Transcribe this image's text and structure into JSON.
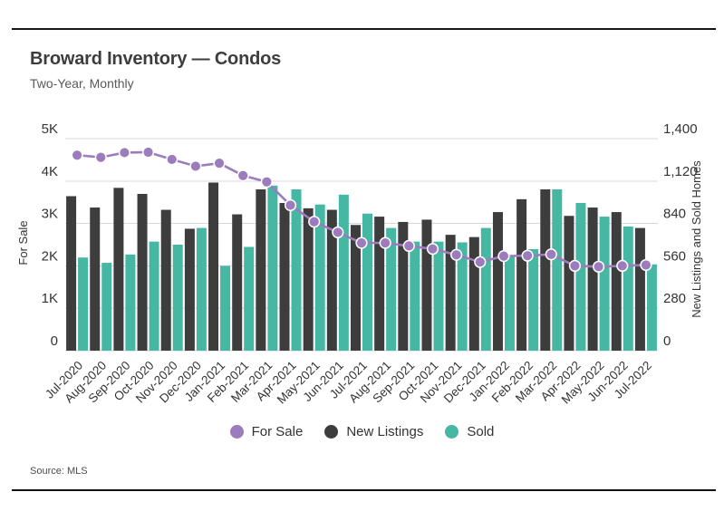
{
  "header": {
    "title": "Broward Inventory — Condos",
    "subtitle": "Two-Year, Monthly"
  },
  "legend": {
    "items": [
      {
        "label": "For Sale",
        "color": "#9d7cbe"
      },
      {
        "label": "New Listings",
        "color": "#3d3d3d"
      },
      {
        "label": "Sold",
        "color": "#45b7a2"
      }
    ]
  },
  "footer": {
    "source": "Source: MLS"
  },
  "colors": {
    "background": "#ffffff",
    "rule": "#141414",
    "grid": "#d8d8d8",
    "axis_text": "#333333",
    "title_text": "#3d3d3d",
    "subtitle_text": "#595959",
    "for_sale_line": "#9d7cbe",
    "new_listings_bar": "#3d3d3d",
    "sold_bar": "#45b7a2"
  },
  "chart_data": {
    "type": "bar",
    "subtype": "grouped-bars-with-line-overlay-dual-y-axis",
    "title": "Broward Inventory — Condos",
    "subtitle": "Two-Year, Monthly",
    "grid": true,
    "legend_position": "bottom",
    "categories": [
      "Jul-2020",
      "Aug-2020",
      "Sep-2020",
      "Oct-2020",
      "Nov-2020",
      "Dec-2020",
      "Jan-2021",
      "Feb-2021",
      "Mar-2021",
      "Apr-2021",
      "May-2021",
      "Jun-2021",
      "Jul-2021",
      "Aug-2021",
      "Sep-2021",
      "Oct-2021",
      "Nov-2021",
      "Dec-2021",
      "Jan-2022",
      "Feb-2022",
      "Mar-2022",
      "Apr-2022",
      "May-2022",
      "Jun-2022",
      "Jul-2022"
    ],
    "series": [
      {
        "name": "For Sale",
        "render": "line",
        "axis": "left",
        "color": "#9d7cbe",
        "values": [
          4610,
          4560,
          4670,
          4680,
          4510,
          4350,
          4420,
          4130,
          3980,
          3430,
          3040,
          2790,
          2540,
          2540,
          2470,
          2400,
          2260,
          2090,
          2230,
          2240,
          2270,
          2000,
          1980,
          2000,
          2020
        ]
      },
      {
        "name": "New Listings",
        "render": "bar",
        "axis": "right",
        "color": "#3d3d3d",
        "values": [
          1020,
          945,
          1075,
          1035,
          930,
          805,
          1110,
          900,
          1065,
          975,
          940,
          930,
          830,
          885,
          850,
          865,
          765,
          750,
          915,
          1000,
          1065,
          890,
          945,
          915,
          810
        ]
      },
      {
        "name": "Sold",
        "render": "bar",
        "axis": "right",
        "color": "#45b7a2",
        "values": [
          615,
          580,
          635,
          720,
          700,
          810,
          560,
          685,
          1090,
          1065,
          965,
          1030,
          905,
          810,
          720,
          720,
          715,
          810,
          625,
          670,
          1065,
          975,
          885,
          820,
          570
        ]
      }
    ],
    "left_axis": {
      "title": "For Sale",
      "range": [
        0,
        5000
      ],
      "tick_labels": [
        "0",
        "1K",
        "2K",
        "3K",
        "4K",
        "5K"
      ]
    },
    "right_axis": {
      "title": "New Listings and Sold Homes",
      "range": [
        0,
        1400
      ],
      "tick_labels": [
        "0",
        "280",
        "560",
        "840",
        "1,120",
        "1,400"
      ]
    }
  }
}
